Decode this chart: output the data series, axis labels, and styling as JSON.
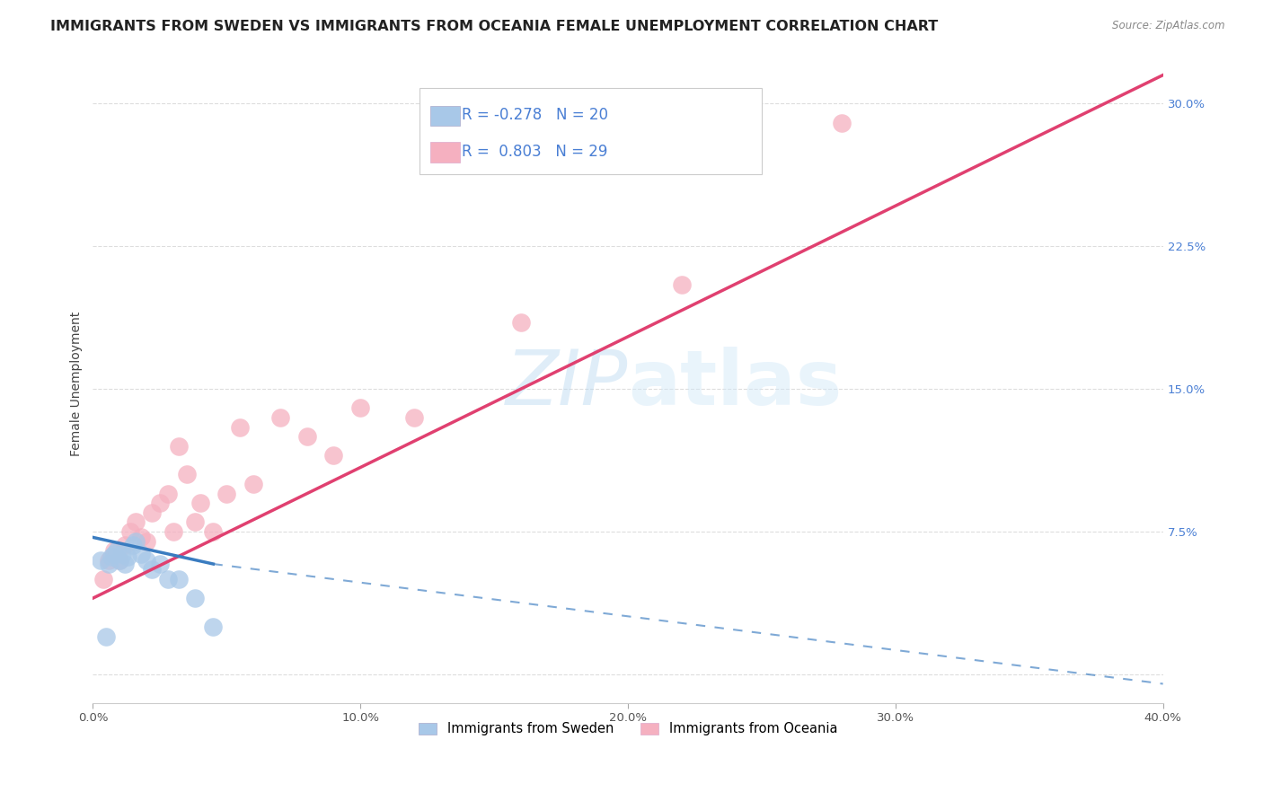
{
  "title": "IMMIGRANTS FROM SWEDEN VS IMMIGRANTS FROM OCEANIA FEMALE UNEMPLOYMENT CORRELATION CHART",
  "source": "Source: ZipAtlas.com",
  "ylabel": "Female Unemployment",
  "xlim": [
    0.0,
    0.4
  ],
  "ylim": [
    -0.015,
    0.32
  ],
  "xticks": [
    0.0,
    0.1,
    0.2,
    0.3,
    0.4
  ],
  "yticks": [
    0.0,
    0.075,
    0.15,
    0.225,
    0.3
  ],
  "ytick_labels": [
    "",
    "7.5%",
    "15.0%",
    "22.5%",
    "30.0%"
  ],
  "xtick_labels": [
    "0.0%",
    "10.0%",
    "20.0%",
    "30.0%",
    "40.0%"
  ],
  "background_color": "#ffffff",
  "grid_color": "#dddddd",
  "sweden_color": "#a8c8e8",
  "oceania_color": "#f5b0c0",
  "sweden_line_color": "#3a7cc0",
  "oceania_line_color": "#e04070",
  "sweden_R": -0.278,
  "sweden_N": 20,
  "oceania_R": 0.803,
  "oceania_N": 29,
  "watermark_zip": "ZIP",
  "watermark_atlas": "atlas",
  "legend_text_color": "#4a7fd4",
  "legend_label_color": "#333333",
  "sweden_scatter_x": [
    0.003,
    0.005,
    0.006,
    0.007,
    0.008,
    0.009,
    0.01,
    0.011,
    0.012,
    0.013,
    0.015,
    0.016,
    0.018,
    0.02,
    0.022,
    0.025,
    0.028,
    0.032,
    0.038,
    0.045
  ],
  "sweden_scatter_y": [
    0.06,
    0.02,
    0.058,
    0.062,
    0.063,
    0.065,
    0.06,
    0.063,
    0.058,
    0.062,
    0.068,
    0.07,
    0.063,
    0.06,
    0.055,
    0.058,
    0.05,
    0.05,
    0.04,
    0.025
  ],
  "oceania_scatter_x": [
    0.004,
    0.006,
    0.008,
    0.01,
    0.012,
    0.014,
    0.016,
    0.018,
    0.02,
    0.022,
    0.025,
    0.028,
    0.03,
    0.032,
    0.035,
    0.038,
    0.04,
    0.045,
    0.05,
    0.055,
    0.06,
    0.07,
    0.08,
    0.09,
    0.1,
    0.12,
    0.16,
    0.22,
    0.28
  ],
  "oceania_scatter_y": [
    0.05,
    0.06,
    0.065,
    0.06,
    0.068,
    0.075,
    0.08,
    0.072,
    0.07,
    0.085,
    0.09,
    0.095,
    0.075,
    0.12,
    0.105,
    0.08,
    0.09,
    0.075,
    0.095,
    0.13,
    0.1,
    0.135,
    0.125,
    0.115,
    0.14,
    0.135,
    0.185,
    0.205,
    0.29
  ],
  "oceania_line_x0": 0.0,
  "oceania_line_y0": 0.04,
  "oceania_line_x1": 0.4,
  "oceania_line_y1": 0.315,
  "sweden_line_solid_x0": 0.0,
  "sweden_line_solid_y0": 0.072,
  "sweden_line_solid_x1": 0.045,
  "sweden_line_solid_y1": 0.058,
  "sweden_line_dash_x0": 0.045,
  "sweden_line_dash_y0": 0.058,
  "sweden_line_dash_x1": 0.4,
  "sweden_line_dash_y1": -0.005,
  "title_fontsize": 11.5,
  "axis_label_fontsize": 10,
  "tick_fontsize": 9.5,
  "legend_fontsize": 12
}
